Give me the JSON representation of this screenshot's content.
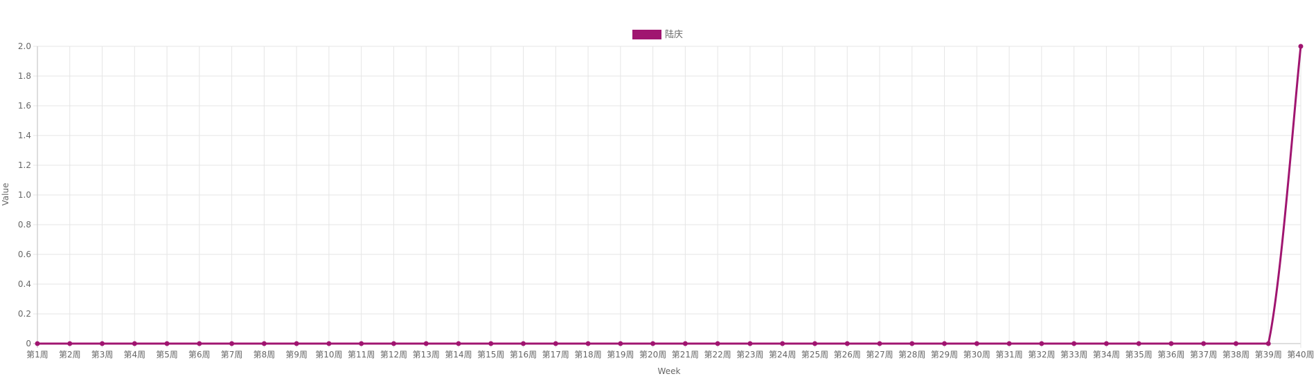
{
  "chart_data": {
    "type": "line",
    "title": "",
    "xlabel": "Week",
    "ylabel": "Value",
    "ylim": [
      0,
      2
    ],
    "yticks": [
      "0",
      "0.2",
      "0.4",
      "0.6",
      "0.8",
      "1.0",
      "1.2",
      "1.4",
      "1.6",
      "1.8",
      "2.0"
    ],
    "grid": true,
    "legend_position": "top-center",
    "categories": [
      "第1周",
      "第2周",
      "第3周",
      "第4周",
      "第5周",
      "第6周",
      "第7周",
      "第8周",
      "第9周",
      "第10周",
      "第11周",
      "第12周",
      "第13周",
      "第14周",
      "第15周",
      "第16周",
      "第17周",
      "第18周",
      "第19周",
      "第20周",
      "第21周",
      "第22周",
      "第23周",
      "第24周",
      "第25周",
      "第26周",
      "第27周",
      "第28周",
      "第29周",
      "第30周",
      "第31周",
      "第32周",
      "第33周",
      "第34周",
      "第35周",
      "第36周",
      "第37周",
      "第38周",
      "第39周",
      "第40周"
    ],
    "series": [
      {
        "name": "陆庆",
        "color": "#a01570",
        "values": [
          0,
          0,
          0,
          0,
          0,
          0,
          0,
          0,
          0,
          0,
          0,
          0,
          0,
          0,
          0,
          0,
          0,
          0,
          0,
          0,
          0,
          0,
          0,
          0,
          0,
          0,
          0,
          0,
          0,
          0,
          0,
          0,
          0,
          0,
          0,
          0,
          0,
          0,
          0,
          2
        ]
      }
    ]
  }
}
